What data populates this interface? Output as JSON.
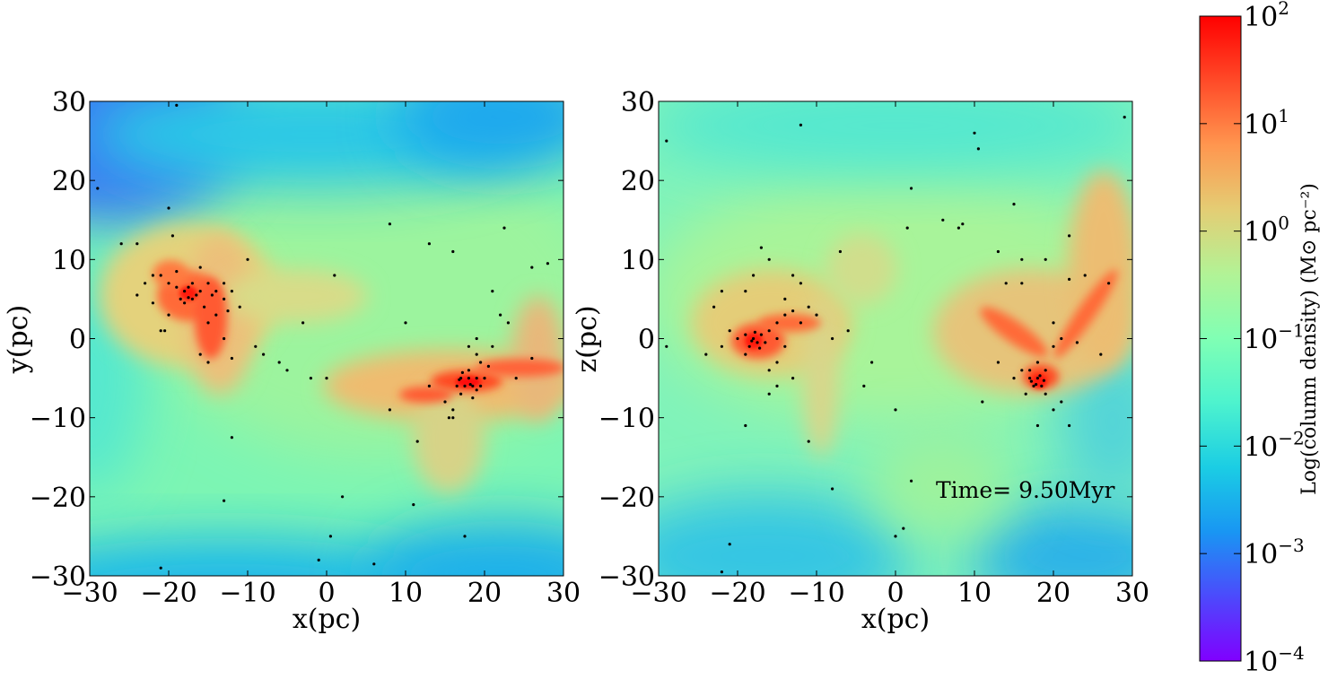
{
  "chart_data": [
    {
      "type": "heatmap",
      "panel": "x-y projection",
      "xlabel": "x(pc)",
      "ylabel": "y(pc)",
      "xlim": [
        -30,
        30
      ],
      "ylim": [
        -30,
        30
      ],
      "xticks": [
        -30,
        -20,
        -10,
        0,
        10,
        20,
        30
      ],
      "yticks": [
        -30,
        -20,
        -10,
        0,
        10,
        20,
        30
      ],
      "xtick_labels": [
        "−30",
        "−20",
        "−10",
        "0",
        "10",
        "20",
        "30"
      ],
      "ytick_labels": [
        "−30",
        "−20",
        "−10",
        "0",
        "10",
        "20",
        "30"
      ],
      "grid": false,
      "dense_regions": [
        {
          "x": -17.5,
          "y": 5.5,
          "peak_log_density": 2.0
        },
        {
          "x": 18.0,
          "y": -5.5,
          "peak_log_density": 2.0
        }
      ],
      "filaments": [
        {
          "from": [
            -22,
            9
          ],
          "to": [
            -13,
            -2
          ],
          "log_density": 1.2
        },
        {
          "from": [
            12,
            -8
          ],
          "to": [
            30,
            -3
          ],
          "log_density": 1.0
        },
        {
          "from": [
            -12,
            6
          ],
          "to": [
            -6,
            2
          ],
          "log_density": 0.3
        }
      ],
      "background_log_density": {
        "top_left": -3.0,
        "center": -0.5,
        "bottom": -1.8
      },
      "stars": [
        [
          -18,
          6
        ],
        [
          -17,
          5
        ],
        [
          -17.5,
          6.5
        ],
        [
          -16.5,
          5.5
        ],
        [
          -18.5,
          5
        ],
        [
          -17,
          7
        ],
        [
          -19,
          6.5
        ],
        [
          -16,
          6
        ],
        [
          -18,
          4.5
        ],
        [
          -17.5,
          5.2
        ],
        [
          -15,
          7
        ],
        [
          -14,
          6
        ],
        [
          -13,
          5
        ],
        [
          -15.5,
          4
        ],
        [
          -14.5,
          5.5
        ],
        [
          -20,
          7
        ],
        [
          -21,
          8
        ],
        [
          -22,
          8
        ],
        [
          -23,
          7
        ],
        [
          -24,
          5.5
        ],
        [
          -19,
          8.5
        ],
        [
          -16,
          9
        ],
        [
          -13,
          7
        ],
        [
          -12,
          6
        ],
        [
          -11,
          4
        ],
        [
          -14,
          3
        ],
        [
          -15,
          2
        ],
        [
          -12.5,
          3.5
        ],
        [
          -20,
          3
        ],
        [
          -21,
          1
        ],
        [
          -13,
          0
        ],
        [
          -15,
          -3
        ],
        [
          -16,
          -2
        ],
        [
          -12,
          -2.5
        ],
        [
          -10,
          10
        ],
        [
          -9,
          -1
        ],
        [
          -8,
          -2
        ],
        [
          -6,
          -3
        ],
        [
          -5,
          -4
        ],
        [
          -3,
          2
        ],
        [
          -2,
          -5
        ],
        [
          0,
          -5
        ],
        [
          -20.5,
          1
        ],
        [
          -22,
          4.5
        ],
        [
          -19.5,
          13
        ],
        [
          -20,
          16.5
        ],
        [
          -26,
          12
        ],
        [
          -24,
          12
        ],
        [
          -29,
          19
        ],
        [
          -19,
          29.5
        ],
        [
          -12,
          -12.5
        ],
        [
          -13,
          -20.5
        ],
        [
          -21,
          -29
        ],
        [
          1,
          8
        ],
        [
          -1,
          -28
        ],
        [
          0.5,
          -25
        ],
        [
          2,
          -20
        ],
        [
          6,
          -28.5
        ],
        [
          8,
          14.5
        ],
        [
          10,
          2
        ],
        [
          8,
          -9
        ],
        [
          11,
          -21
        ],
        [
          11.5,
          -13
        ],
        [
          13,
          12
        ],
        [
          16,
          11
        ],
        [
          13,
          -6
        ],
        [
          15,
          -8
        ],
        [
          16,
          -9
        ],
        [
          16.5,
          -6
        ],
        [
          17,
          -5
        ],
        [
          17.5,
          -6
        ],
        [
          18,
          -5
        ],
        [
          18.5,
          -6
        ],
        [
          19,
          -5
        ],
        [
          18,
          -4
        ],
        [
          17,
          -7
        ],
        [
          19,
          -6.5
        ],
        [
          20,
          -5
        ],
        [
          19.5,
          -3
        ],
        [
          18,
          -1
        ],
        [
          19,
          0
        ],
        [
          21,
          -1
        ],
        [
          21,
          6
        ],
        [
          22,
          3
        ],
        [
          23,
          2
        ],
        [
          22.5,
          14
        ],
        [
          24,
          -5
        ],
        [
          26,
          9
        ],
        [
          26,
          -2.5
        ],
        [
          28,
          9.5
        ],
        [
          17.5,
          -25
        ],
        [
          16,
          -10
        ],
        [
          15.5,
          -10
        ],
        [
          19,
          -2
        ],
        [
          20.5,
          -3.5
        ],
        [
          18.5,
          -7.5
        ],
        [
          17.2,
          -4.3
        ],
        [
          19.5,
          -6
        ],
        [
          16.8,
          -5.2
        ],
        [
          18.2,
          -5.8
        ]
      ]
    },
    {
      "type": "heatmap",
      "panel": "x-z projection",
      "xlabel": "x(pc)",
      "ylabel": "z(pc)",
      "xlim": [
        -30,
        30
      ],
      "ylim": [
        -30,
        30
      ],
      "xticks": [
        -30,
        -20,
        -10,
        0,
        10,
        20,
        30
      ],
      "yticks": [
        -30,
        -20,
        -10,
        0,
        10,
        20,
        30
      ],
      "xtick_labels": [
        "−30",
        "−20",
        "−10",
        "0",
        "10",
        "20",
        "30"
      ],
      "ytick_labels": [
        "−30",
        "−20",
        "−10",
        "0",
        "10",
        "20",
        "30"
      ],
      "grid": false,
      "annotation": "Time= 9.50Myr",
      "dense_regions": [
        {
          "x": -17.5,
          "y": -0.5,
          "peak_log_density": 2.0
        },
        {
          "x": 17.5,
          "y": -5.5,
          "peak_log_density": 2.0
        }
      ],
      "filaments": [
        {
          "from": [
            -18,
            -1
          ],
          "to": [
            -10,
            5
          ],
          "log_density": 1.0
        },
        {
          "from": [
            11,
            5
          ],
          "to": [
            18,
            -5
          ],
          "log_density": 1.0
        },
        {
          "from": [
            18,
            -5
          ],
          "to": [
            28,
            10
          ],
          "log_density": 1.0
        },
        {
          "from": [
            -10,
            5
          ],
          "to": [
            -2,
            17
          ],
          "log_density": 0.3
        }
      ],
      "background_log_density": {
        "top": -1.2,
        "center": -0.4,
        "bottom": -2.2
      },
      "stars": [
        [
          -18,
          0
        ],
        [
          -17.5,
          -0.5
        ],
        [
          -17,
          0.5
        ],
        [
          -18.5,
          -1
        ],
        [
          -16.5,
          -0.5
        ],
        [
          -17.8,
          0.8
        ],
        [
          -18.2,
          -0.3
        ],
        [
          -17.2,
          -1.2
        ],
        [
          -19,
          0.5
        ],
        [
          -16,
          1
        ],
        [
          -15,
          2
        ],
        [
          -14,
          3
        ],
        [
          -13,
          3.5
        ],
        [
          -12,
          2
        ],
        [
          -11,
          4
        ],
        [
          -10,
          3
        ],
        [
          -15,
          0
        ],
        [
          -14,
          -1
        ],
        [
          -19,
          -2
        ],
        [
          -20,
          0
        ],
        [
          -21,
          1
        ],
        [
          -22,
          -1
        ],
        [
          -24,
          -2
        ],
        [
          -23,
          4
        ],
        [
          -22,
          6
        ],
        [
          -19,
          6
        ],
        [
          -18,
          8
        ],
        [
          -17,
          11.5
        ],
        [
          -16,
          10
        ],
        [
          -14,
          5
        ],
        [
          -13,
          8
        ],
        [
          -12,
          7
        ],
        [
          -15,
          -3
        ],
        [
          -16,
          -4
        ],
        [
          -15,
          -6
        ],
        [
          -13,
          -5
        ],
        [
          -16,
          -7
        ],
        [
          -19,
          -11
        ],
        [
          -11,
          -13
        ],
        [
          -8,
          -19
        ],
        [
          -8,
          0
        ],
        [
          -7,
          11
        ],
        [
          -6,
          1
        ],
        [
          -4,
          -6
        ],
        [
          -3,
          -3
        ],
        [
          0,
          -9
        ],
        [
          0,
          -25
        ],
        [
          1,
          -24
        ],
        [
          2,
          -18
        ],
        [
          1.5,
          14
        ],
        [
          2,
          19
        ],
        [
          6,
          15
        ],
        [
          8,
          14
        ],
        [
          8.5,
          14.5
        ],
        [
          10,
          26
        ],
        [
          10.5,
          24
        ],
        [
          11,
          -8
        ],
        [
          13,
          11
        ],
        [
          14,
          7
        ],
        [
          15,
          17
        ],
        [
          16,
          10
        ],
        [
          16,
          7
        ],
        [
          19,
          10
        ],
        [
          22,
          13
        ],
        [
          22,
          7.5
        ],
        [
          24,
          8
        ],
        [
          27,
          7
        ],
        [
          13,
          -3
        ],
        [
          15,
          -5
        ],
        [
          16,
          -4
        ],
        [
          17,
          -5
        ],
        [
          17.5,
          -6
        ],
        [
          18,
          -5
        ],
        [
          18.5,
          -6
        ],
        [
          17,
          -4
        ],
        [
          18,
          -3
        ],
        [
          19,
          -4
        ],
        [
          16.5,
          -7
        ],
        [
          19,
          -7
        ],
        [
          18,
          -11
        ],
        [
          20,
          -9
        ],
        [
          21,
          -8
        ],
        [
          22,
          -11
        ],
        [
          20,
          -1
        ],
        [
          20,
          2
        ],
        [
          21,
          0
        ],
        [
          23,
          -0.5
        ],
        [
          26,
          -2
        ],
        [
          29,
          28
        ],
        [
          -29,
          25
        ],
        [
          -29,
          -1
        ],
        [
          -21,
          -26
        ],
        [
          -22,
          -29.5
        ],
        [
          -12,
          27
        ],
        [
          17.8,
          -5.8
        ],
        [
          18.3,
          -4.7
        ],
        [
          17.2,
          -5.4
        ],
        [
          18.8,
          -5.3
        ]
      ]
    }
  ],
  "colorbar": {
    "label": "Log(column density) (M⊙ pc⁻²)",
    "scale": "log",
    "range": [
      -4,
      2
    ],
    "ticks": [
      {
        "base": "10",
        "exp": "2"
      },
      {
        "base": "10",
        "exp": "1"
      },
      {
        "base": "10",
        "exp": "0"
      },
      {
        "base": "10",
        "exp": "−1"
      },
      {
        "base": "10",
        "exp": "−2"
      },
      {
        "base": "10",
        "exp": "−3"
      },
      {
        "base": "10",
        "exp": "−4"
      }
    ],
    "colormap": "rainbow"
  }
}
